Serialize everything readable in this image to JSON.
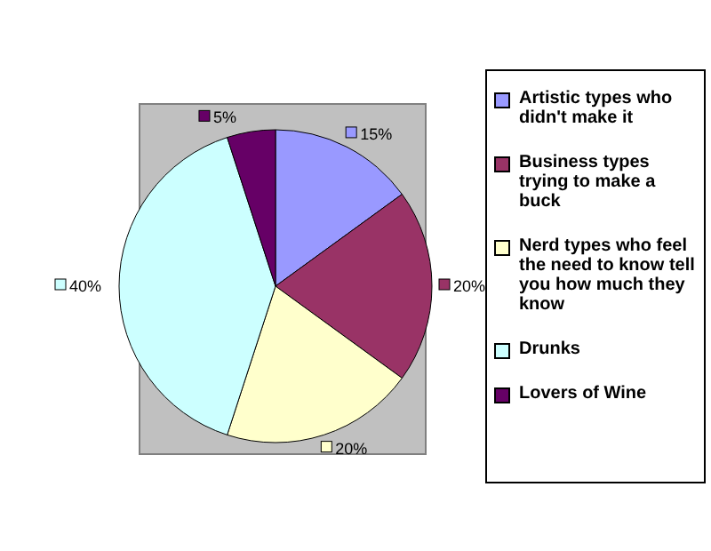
{
  "chart_data": {
    "type": "pie",
    "categories": [
      "Artistic types who didn't make it",
      "Business types trying to make a buck",
      "Nerd types who feel the need to know tell you how much they know",
      "Drunks",
      "Lovers of Wine"
    ],
    "values": [
      15,
      20,
      20,
      40,
      5
    ],
    "colors": [
      "#9999ff",
      "#993366",
      "#ffffcc",
      "#ccffff",
      "#660066"
    ],
    "value_labels": [
      "15%",
      "20%",
      "20%",
      "40%",
      "5%"
    ],
    "legend": "right"
  }
}
